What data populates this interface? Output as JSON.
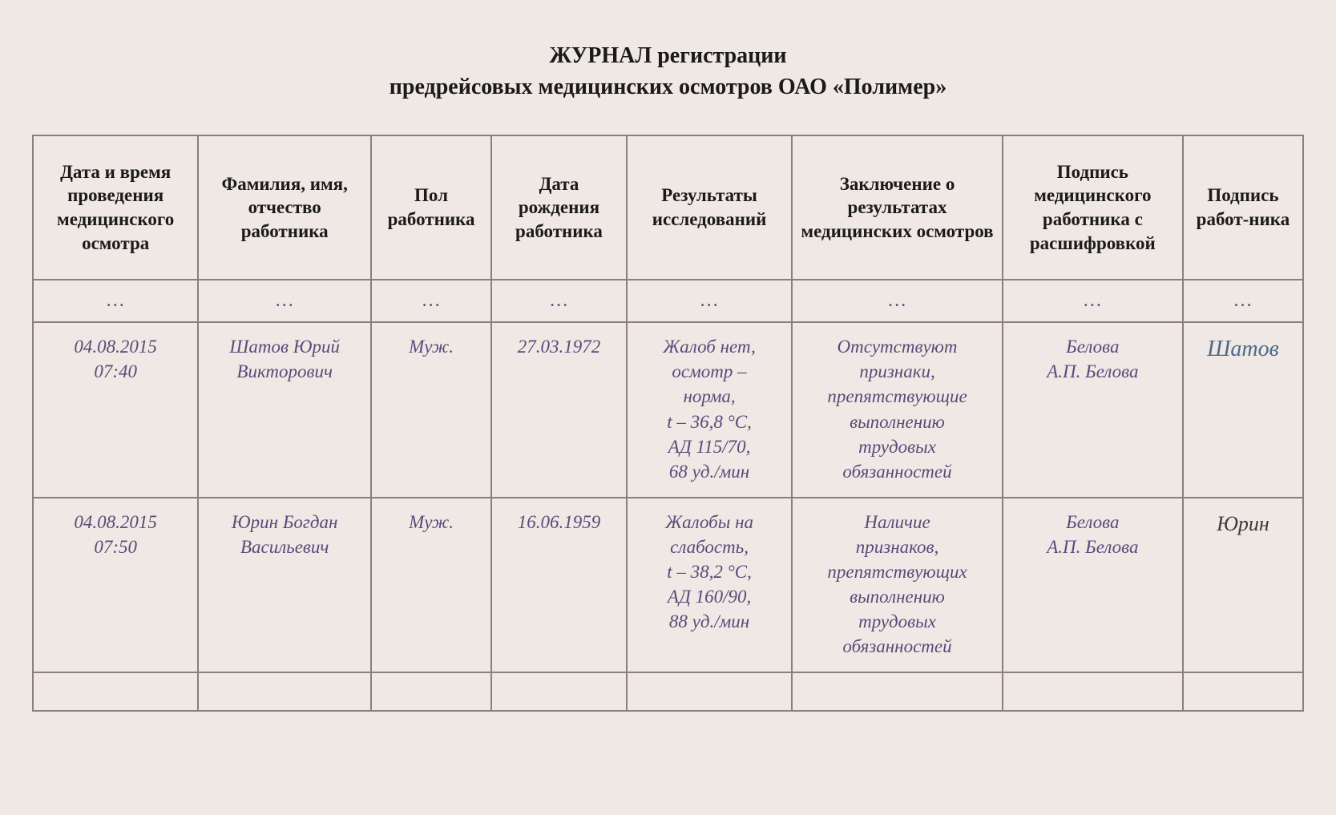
{
  "styling": {
    "background_color": "#efe8e4",
    "border_color": "#8a8078",
    "header_text_color": "#1a1a1a",
    "data_text_color": "#5a4a7a",
    "signature_shatov_color": "#4a6a8a",
    "signature_yurin_color": "#3a3a3a",
    "header_fontsize": 23,
    "title_fontsize": 28,
    "data_fontsize": 23,
    "data_font_style": "italic",
    "header_font_weight": "bold"
  },
  "title": {
    "line1": "ЖУРНАЛ регистрации",
    "line2": "предрейсовых медицинских осмотров ОАО «Полимер»"
  },
  "columns": [
    "Дата и время проведения медицинского осмотра",
    "Фамилия, имя, отчество работника",
    "Пол работника",
    "Дата рождения работника",
    "Результаты исследований",
    "Заключение о результатах медицинских осмотров",
    "Подпись медицинского работника с расшифровкой",
    "Подпись работ-ника"
  ],
  "ellipsis": "…",
  "rows": [
    {
      "datetime_l1": "04.08.2015",
      "datetime_l2": "07:40",
      "name_l1": "Шатов Юрий",
      "name_l2": "Викторович",
      "gender": "Муж.",
      "birth": "27.03.1972",
      "results_l1": "Жалоб нет,",
      "results_l2": "осмотр –",
      "results_l3": "норма,",
      "results_l4": "t – 36,8 °С,",
      "results_l5": "АД 115/70,",
      "results_l6": "68 уд./мин",
      "conclusion_l1": "Отсутствуют",
      "conclusion_l2": "признаки,",
      "conclusion_l3": "препятствующие",
      "conclusion_l4": "выполнению",
      "conclusion_l5": "трудовых",
      "conclusion_l6": "обязанностей",
      "medsign_l1": "Белова",
      "medsign_l2": "А.П. Белова",
      "workersign": "Шатов",
      "workersign_class": "sig-shatov"
    },
    {
      "datetime_l1": "04.08.2015",
      "datetime_l2": "07:50",
      "name_l1": "Юрин Богдан",
      "name_l2": "Васильевич",
      "gender": "Муж.",
      "birth": "16.06.1959",
      "results_l1": "Жалобы на",
      "results_l2": "слабость,",
      "results_l3": "t – 38,2 °С,",
      "results_l4": "АД 160/90,",
      "results_l5": "88 уд./мин",
      "results_l6": "",
      "conclusion_l1": "Наличие",
      "conclusion_l2": "признаков,",
      "conclusion_l3": "препятствующих",
      "conclusion_l4": "выполнению",
      "conclusion_l5": "трудовых",
      "conclusion_l6": "обязанностей",
      "medsign_l1": "Белова",
      "medsign_l2": "А.П. Белова",
      "workersign": "Юрин",
      "workersign_class": "sig-yurin"
    }
  ]
}
